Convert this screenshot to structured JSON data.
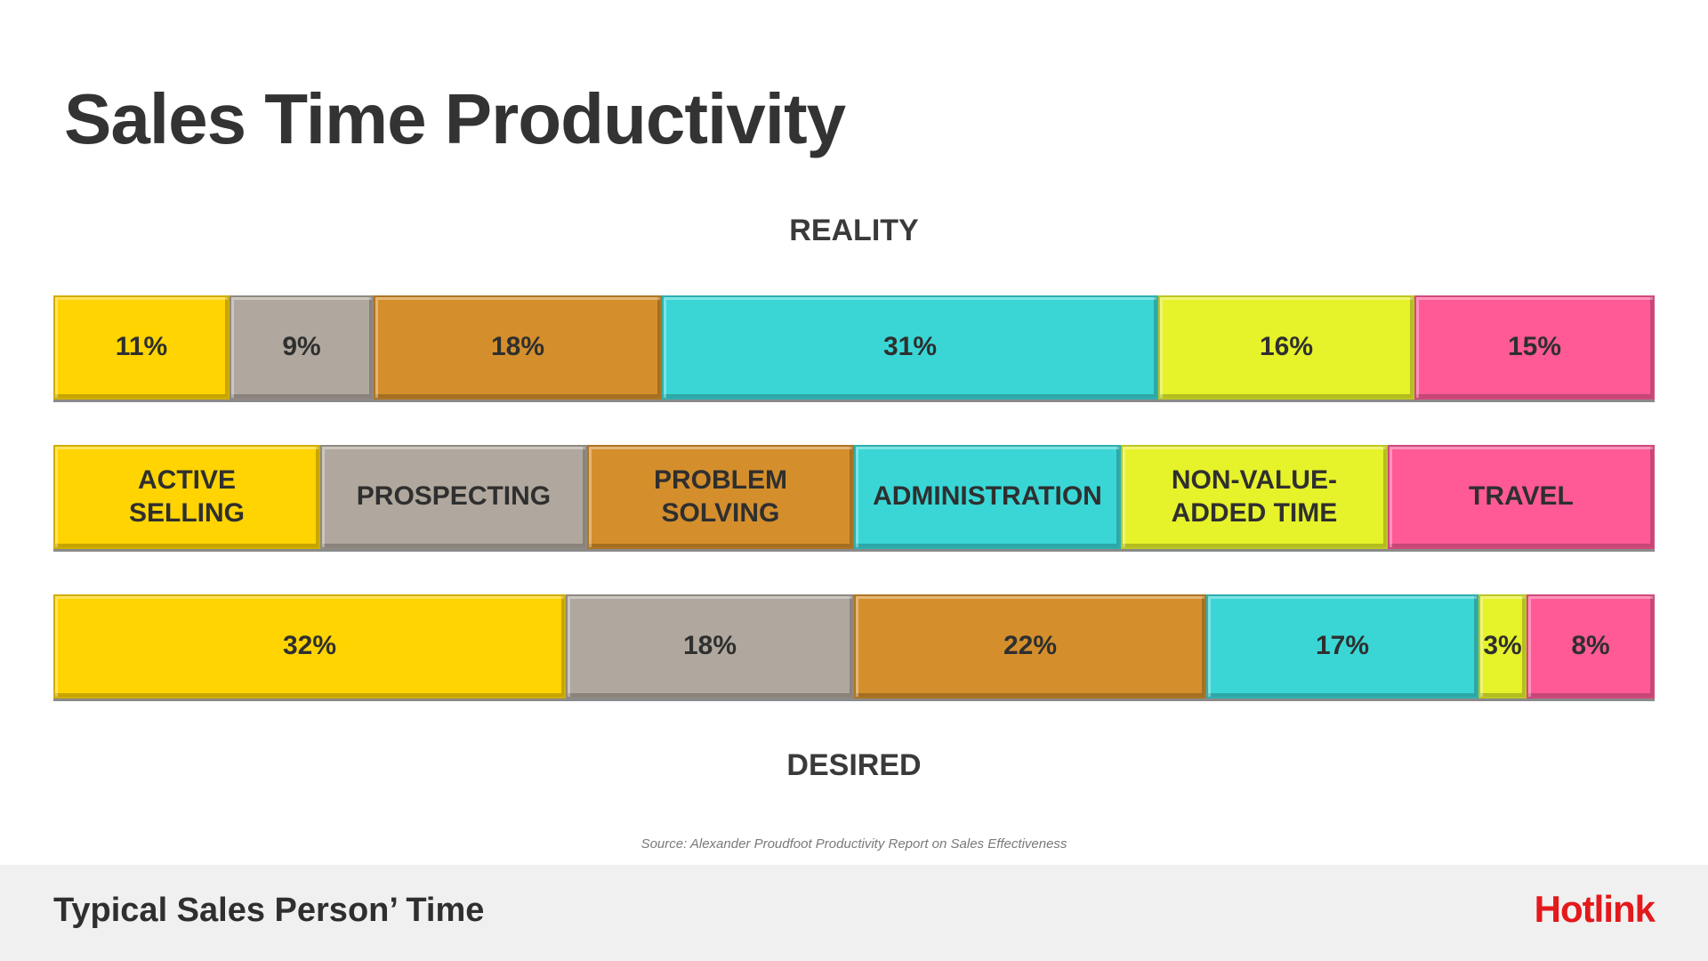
{
  "title": "Sales Time Productivity",
  "source_note": "Source: Alexander Proudfoot Productivity Report on Sales Effectiveness",
  "footer": {
    "title": "Typical Sales Person’ Time",
    "brand": "Hotlink"
  },
  "colors": {
    "active_selling": "#ffd400",
    "prospecting": "#b0a89e",
    "problem_solving": "#d48f2c",
    "administration": "#3ad6d6",
    "non_value_added_time": "#e6f22a",
    "travel": "#ff5a96",
    "title_text": "#333333",
    "brand": "#e3191b"
  },
  "chart_data": {
    "type": "bar",
    "orientation": "horizontal-stacked-100-percent",
    "categories": [
      "ACTIVE\nSELLING",
      "PROSPECTING",
      "PROBLEM\nSOLVING",
      "ADMINISTRATION",
      "NON-VALUE-\nADDED TIME",
      "TRAVEL"
    ],
    "series": [
      {
        "name": "REALITY",
        "values": [
          11,
          9,
          18,
          31,
          16,
          15
        ],
        "labels": [
          "11%",
          "9%",
          "18%",
          "31%",
          "16%",
          "15%"
        ]
      },
      {
        "name": "DESIRED",
        "values": [
          32,
          18,
          22,
          17,
          3,
          8
        ],
        "labels": [
          "32%",
          "18%",
          "22%",
          "17%",
          "3%",
          "8%"
        ]
      }
    ],
    "legend": "middle"
  }
}
